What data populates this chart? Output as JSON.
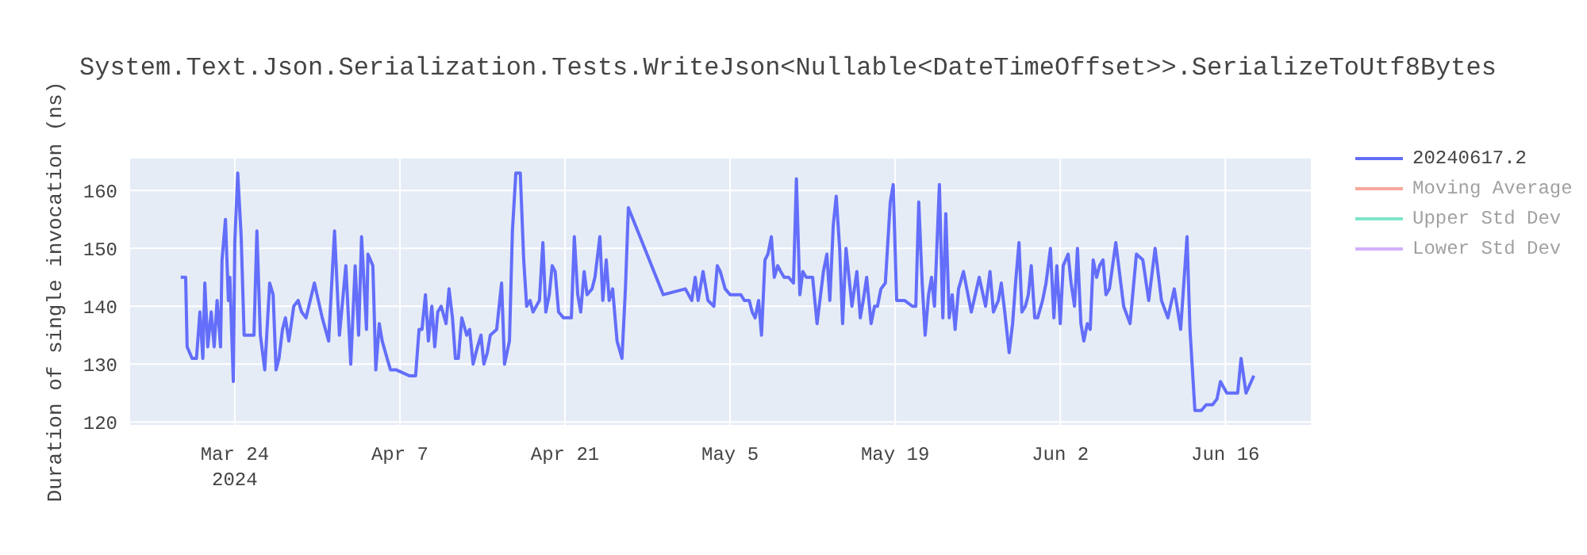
{
  "chart_data": {
    "type": "line",
    "title": "System.Text.Json.Serialization.Tests.WriteJson<Nullable<DateTimeOffset>>.SerializeToUtf8Bytes",
    "ylabel": "Duration of single invocation (ns)",
    "xlim": [
      "2024-03-15T03:00",
      "2024-06-23T06:00"
    ],
    "xticks": [
      {
        "value": "2024-03-24",
        "label": "Mar 24\n2024"
      },
      {
        "value": "2024-04-07",
        "label": "Apr 7"
      },
      {
        "value": "2024-04-21",
        "label": "Apr 21"
      },
      {
        "value": "2024-05-05",
        "label": "May 5"
      },
      {
        "value": "2024-05-19",
        "label": "May 19"
      },
      {
        "value": "2024-06-02",
        "label": "Jun 2"
      },
      {
        "value": "2024-06-16",
        "label": "Jun 16"
      }
    ],
    "ylim": [
      119.5,
      165.5
    ],
    "yticks": [
      120,
      130,
      140,
      150,
      160
    ],
    "grid": true,
    "legend": "top right",
    "marker": "none",
    "line_style": "solid",
    "series": [
      {
        "name": "20240617.2",
        "color": "#636efa",
        "x": [
          "2024-03-19T10:00",
          "2024-03-19T20:00",
          "2024-03-19T23:00",
          "2024-03-20T09:00",
          "2024-03-20T18:00",
          "2024-03-21T01:00",
          "2024-03-21T07:00",
          "2024-03-21T11:00",
          "2024-03-21T17:00",
          "2024-03-22T00:00",
          "2024-03-22T06:00",
          "2024-03-22T12:00",
          "2024-03-22T19:00",
          "2024-03-22T22:00",
          "2024-03-23T05:00",
          "2024-03-23T11:00",
          "2024-03-23T14:00",
          "2024-03-23T21:00",
          "2024-03-24T00:00",
          "2024-03-24T06:00",
          "2024-03-24T13:00",
          "2024-03-24T19:00",
          "2024-03-25T05:00",
          "2024-03-25T15:00",
          "2024-03-25T21:00",
          "2024-03-26T04:00",
          "2024-03-26T13:00",
          "2024-03-26T23:00",
          "2024-03-27T06:00",
          "2024-03-27T12:00",
          "2024-03-27T18:00",
          "2024-03-28T01:00",
          "2024-03-28T07:00",
          "2024-03-28T14:00",
          "2024-03-29T00:00",
          "2024-03-29T09:00",
          "2024-03-29T16:00",
          "2024-03-30T01:00",
          "2024-03-30T18:00",
          "2024-03-31T10:00",
          "2024-03-31T23:00",
          "2024-04-01T11:00",
          "2024-04-01T21:00",
          "2024-04-02T10:00",
          "2024-04-02T20:00",
          "2024-04-03T05:00",
          "2024-04-03T12:00",
          "2024-04-03T18:00",
          "2024-04-04T04:00",
          "2024-04-04T07:00",
          "2024-04-04T17:00",
          "2024-04-04T23:00",
          "2024-04-05T06:00",
          "2024-04-05T12:00",
          "2024-04-05T22:00",
          "2024-04-06T05:00",
          "2024-04-06T17:00",
          "2024-04-07T19:00",
          "2024-04-08T08:00",
          "2024-04-08T15:00",
          "2024-04-08T21:00",
          "2024-04-09T04:00",
          "2024-04-09T10:00",
          "2024-04-09T17:00",
          "2024-04-09T23:00",
          "2024-04-10T05:00",
          "2024-04-10T12:00",
          "2024-04-10T22:00",
          "2024-04-11T04:00",
          "2024-04-11T11:00",
          "2024-04-11T17:00",
          "2024-04-11T23:00",
          "2024-04-12T06:00",
          "2024-04-12T16:00",
          "2024-04-12T22:00",
          "2024-04-13T05:00",
          "2024-04-13T14:00",
          "2024-04-13T21:00",
          "2024-04-14T03:00",
          "2024-04-14T10:00",
          "2024-04-14T16:00",
          "2024-04-15T05:00",
          "2024-04-15T15:00",
          "2024-04-15T21:00",
          "2024-04-16T07:00",
          "2024-04-16T13:00",
          "2024-04-16T20:00",
          "2024-04-17T05:00",
          "2024-04-17T12:00",
          "2024-04-17T18:00",
          "2024-04-18T01:00",
          "2024-04-18T07:00",
          "2024-04-18T20:00",
          "2024-04-19T03:00",
          "2024-04-19T09:00",
          "2024-04-19T16:00",
          "2024-04-19T22:00",
          "2024-04-20T04:00",
          "2024-04-20T11:00",
          "2024-04-20T21:00",
          "2024-04-21T13:00",
          "2024-04-21T19:00",
          "2024-04-22T02:00",
          "2024-04-22T08:00",
          "2024-04-22T15:00",
          "2024-04-22T21:00",
          "2024-04-23T07:00",
          "2024-04-23T13:00",
          "2024-04-23T23:00",
          "2024-04-24T05:00",
          "2024-04-24T12:00",
          "2024-04-24T18:00",
          "2024-04-25T01:00",
          "2024-04-25T10:00",
          "2024-04-25T20:00",
          "2024-04-26T03:00",
          "2024-04-26T09:00",
          "2024-04-29T08:00",
          "2024-05-01T05:00",
          "2024-05-01T18:00",
          "2024-05-02T01:00",
          "2024-05-02T07:00",
          "2024-05-02T17:00",
          "2024-05-03T03:00",
          "2024-05-03T15:00",
          "2024-05-03T22:00",
          "2024-05-04T04:00",
          "2024-05-04T14:00",
          "2024-05-05T00:00",
          "2024-05-05T09:00",
          "2024-05-05T22:00",
          "2024-05-06T05:00",
          "2024-05-06T15:00",
          "2024-05-06T21:00",
          "2024-05-07T03:00",
          "2024-05-07T10:00",
          "2024-05-07T16:00",
          "2024-05-07T23:00",
          "2024-05-08T05:00",
          "2024-05-08T12:00",
          "2024-05-08T18:00",
          "2024-05-09T01:00",
          "2024-05-09T07:00",
          "2024-05-09T14:00",
          "2024-05-09T23:00",
          "2024-05-10T09:00",
          "2024-05-10T15:00",
          "2024-05-10T22:00",
          "2024-05-11T04:00",
          "2024-05-11T11:00",
          "2024-05-12T00:00",
          "2024-05-12T09:00",
          "2024-05-12T22:00",
          "2024-05-13T05:00",
          "2024-05-13T11:00",
          "2024-05-13T18:00",
          "2024-05-14T00:00",
          "2024-05-14T07:00",
          "2024-05-14T13:00",
          "2024-05-14T20:00",
          "2024-05-15T02:00",
          "2024-05-15T08:00",
          "2024-05-15T18:00",
          "2024-05-16T01:00",
          "2024-05-16T07:00",
          "2024-05-16T14:00",
          "2024-05-16T23:00",
          "2024-05-17T06:00",
          "2024-05-17T12:00",
          "2024-05-17T19:00",
          "2024-05-18T04:00",
          "2024-05-18T14:00",
          "2024-05-18T20:00",
          "2024-05-19T03:00",
          "2024-05-19T19:00",
          "2024-05-20T11:00",
          "2024-05-20T18:00",
          "2024-05-21T00:00",
          "2024-05-21T07:00",
          "2024-05-21T13:00",
          "2024-05-21T20:00",
          "2024-05-22T02:00",
          "2024-05-22T08:00",
          "2024-05-22T18:00",
          "2024-05-23T01:00",
          "2024-05-23T07:00",
          "2024-05-23T14:00",
          "2024-05-23T20:00",
          "2024-05-24T02:00",
          "2024-05-24T09:00",
          "2024-05-24T19:00",
          "2024-05-25T11:00",
          "2024-05-26T03:00",
          "2024-05-26T16:00",
          "2024-05-27T01:00",
          "2024-05-27T08:00",
          "2024-05-27T18:00",
          "2024-05-28T00:00",
          "2024-05-28T07:00",
          "2024-05-28T16:00",
          "2024-05-28T23:00",
          "2024-05-29T05:00",
          "2024-05-29T12:00",
          "2024-05-29T18:00",
          "2024-05-30T01:00",
          "2024-05-30T07:00",
          "2024-05-30T13:00",
          "2024-05-30T20:00",
          "2024-05-31T02:00",
          "2024-05-31T12:00",
          "2024-05-31T19:00",
          "2024-06-01T04:00",
          "2024-06-01T11:00",
          "2024-06-01T17:00",
          "2024-06-02T00:00",
          "2024-06-02T06:00",
          "2024-06-02T16:00",
          "2024-06-02T22:00",
          "2024-06-03T05:00",
          "2024-06-03T11:00",
          "2024-06-03T18:00",
          "2024-06-04T00:00",
          "2024-06-04T07:00",
          "2024-06-04T13:00",
          "2024-06-04T19:00",
          "2024-06-05T02:00",
          "2024-06-05T08:00",
          "2024-06-05T15:00",
          "2024-06-05T21:00",
          "2024-06-06T04:00",
          "2024-06-06T17:00",
          "2024-06-07T09:00",
          "2024-06-07T22:00",
          "2024-06-08T11:00",
          "2024-06-09T00:00",
          "2024-06-09T12:00",
          "2024-06-10T01:00",
          "2024-06-10T14:00",
          "2024-06-11T03:00",
          "2024-06-11T16:00",
          "2024-06-12T05:00",
          "2024-06-12T18:00",
          "2024-06-13T00:00",
          "2024-06-13T10:00",
          "2024-06-13T23:00",
          "2024-06-14T09:00",
          "2024-06-14T22:00",
          "2024-06-15T07:00",
          "2024-06-15T14:00",
          "2024-06-16T03:00",
          "2024-06-16T12:00",
          "2024-06-17T01:00",
          "2024-06-17T08:00",
          "2024-06-17T18:00",
          "2024-06-18T10:00"
        ],
        "values": [
          145,
          145,
          133,
          131,
          131,
          139,
          131,
          144,
          133,
          139,
          133,
          141,
          133,
          148,
          155,
          141,
          145,
          127,
          151,
          163,
          152,
          135,
          135,
          135,
          153,
          135,
          129,
          144,
          142,
          129,
          131,
          136,
          138,
          134,
          140,
          141,
          139,
          138,
          144,
          138,
          134,
          153,
          135,
          147,
          130,
          147,
          135,
          152,
          136,
          149,
          147,
          129,
          137,
          134,
          131,
          129,
          129,
          128,
          128,
          136,
          136,
          142,
          134,
          140,
          133,
          139,
          140,
          137,
          143,
          138,
          131,
          131,
          138,
          135,
          136,
          130,
          133,
          135,
          130,
          132,
          135,
          136,
          144,
          130,
          134,
          153,
          163,
          163,
          148,
          140,
          141,
          139,
          141,
          151,
          139,
          142,
          147,
          146,
          139,
          138,
          138,
          152,
          142,
          139,
          146,
          142,
          143,
          145,
          152,
          141,
          148,
          141,
          143,
          134,
          131,
          143,
          157,
          142,
          143,
          141,
          145,
          141,
          146,
          141,
          140,
          147,
          146,
          143,
          142,
          142,
          142,
          141,
          141,
          139,
          138,
          141,
          135,
          148,
          149,
          152,
          145,
          147,
          146,
          145,
          145,
          144,
          162,
          142,
          146,
          145,
          145,
          137,
          146,
          149,
          141,
          154,
          159,
          150,
          137,
          150,
          145,
          140,
          146,
          138,
          141,
          145,
          137,
          140,
          140,
          143,
          144,
          158,
          161,
          141,
          141,
          140,
          140,
          158,
          144,
          135,
          142,
          145,
          140,
          161,
          138,
          156,
          138,
          142,
          136,
          143,
          146,
          139,
          145,
          140,
          146,
          139,
          141,
          144,
          139,
          132,
          137,
          144,
          151,
          139,
          140,
          142,
          147,
          138,
          138,
          141,
          144,
          150,
          138,
          147,
          137,
          147,
          149,
          144,
          140,
          150,
          137,
          134,
          137,
          136,
          148,
          145,
          147,
          148,
          142,
          143,
          151,
          140,
          137,
          149,
          148,
          141,
          150,
          141,
          138,
          143,
          136,
          152,
          136,
          122,
          122,
          123,
          123,
          124,
          127,
          125,
          125,
          125,
          131,
          125,
          128
        ]
      },
      {
        "name": "Moving Average",
        "color": "#ef553b"
      },
      {
        "name": "Upper Std Dev",
        "color": "#00cc96"
      },
      {
        "name": "Lower Std Dev",
        "color": "#ab63fa"
      }
    ]
  }
}
